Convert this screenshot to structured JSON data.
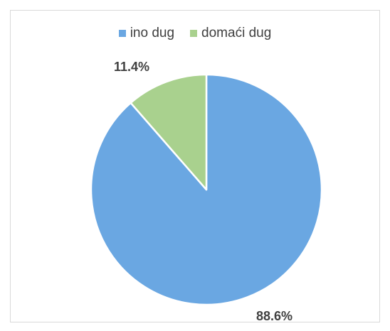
{
  "chart_data": {
    "type": "pie",
    "categories": [
      "ino dug",
      "domaći dug"
    ],
    "values": [
      88.6,
      11.4
    ],
    "data_labels": [
      "88.6%",
      "11.4%"
    ],
    "colors": [
      "#6aa7e2",
      "#a9d18e"
    ],
    "legend_position": "top",
    "title": "",
    "start_angle": "12 o'clock, clockwise"
  }
}
